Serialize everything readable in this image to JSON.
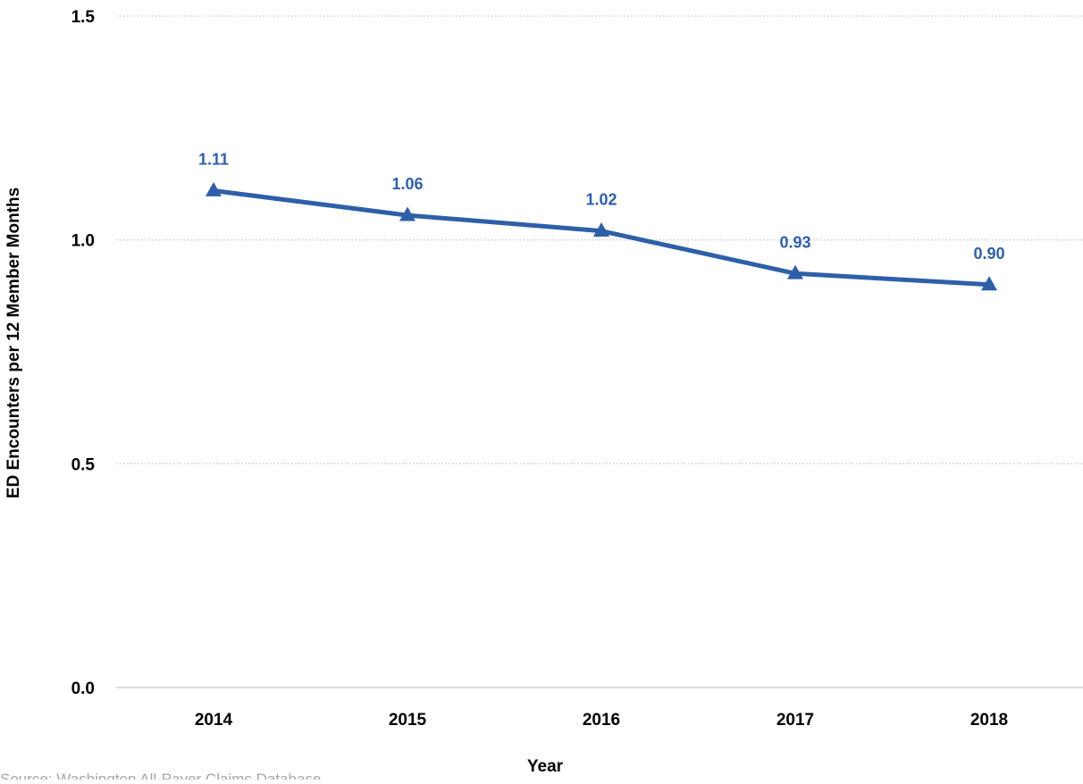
{
  "chart_data": {
    "type": "line",
    "title": "",
    "xlabel": "Year",
    "ylabel": "ED Encounters per 12 Member Months",
    "categories": [
      "2014",
      "2015",
      "2016",
      "2017",
      "2018"
    ],
    "series": [
      {
        "values": [
          1.11,
          1.055,
          1.02,
          0.925,
          0.9
        ],
        "labels": [
          "1.11",
          "1.06",
          "1.02",
          "0.93",
          "0.90"
        ],
        "marker": "triangle"
      }
    ],
    "ylim": [
      0,
      1.5
    ],
    "yticks": [
      0.0,
      0.5,
      1.0,
      1.5
    ],
    "ytick_labels": [
      "0.0",
      "0.5",
      "1.0",
      "1.5"
    ],
    "grid": "horizontal-dotted",
    "legend": "none"
  },
  "source": "Source: Washington All-Payer Claims Database",
  "colors": {
    "series": "#2e5fa8",
    "grid": "#c8c8c8",
    "axis": "#d0d0d0",
    "source": "#a6a6a6"
  }
}
